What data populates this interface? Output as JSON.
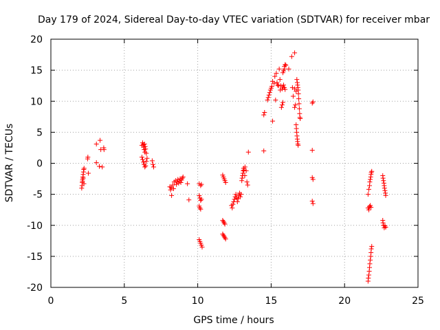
{
  "chart_data": {
    "type": "scatter",
    "title": "Day 179 of 2024, Sidereal Day-to-day VTEC variation (SDTVAR) for receiver mbar",
    "xlabel": "GPS time / hours",
    "ylabel": "SDTVAR / TECUs",
    "xlim": [
      0,
      25
    ],
    "ylim": [
      -20,
      20
    ],
    "x_ticks": [
      0,
      5,
      10,
      15,
      20,
      25
    ],
    "x_tick_labels": [
      "0",
      "5",
      "10",
      "15",
      "20",
      "25"
    ],
    "y_ticks": [
      -20,
      -15,
      -10,
      -5,
      0,
      5,
      10,
      15,
      20
    ],
    "y_tick_labels": [
      "-20",
      "-15",
      "-10",
      "-5",
      "0",
      "5",
      "10",
      "15",
      "20"
    ],
    "grid": true,
    "marker": "+",
    "marker_color": "#ff0000",
    "series": [
      {
        "name": "SDTVAR",
        "points": [
          [
            2.1,
            -4.0
          ],
          [
            2.12,
            -3.6
          ],
          [
            2.14,
            -3.1
          ],
          [
            2.16,
            -2.6
          ],
          [
            2.18,
            -2.2
          ],
          [
            2.2,
            -1.8
          ],
          [
            2.22,
            -1.4
          ],
          [
            2.24,
            -1.0
          ],
          [
            2.26,
            -0.8
          ],
          [
            2.15,
            -2.9
          ],
          [
            2.2,
            -2.4
          ],
          [
            2.25,
            -3.3
          ],
          [
            2.5,
            0.7
          ],
          [
            2.52,
            1.0
          ],
          [
            2.55,
            -1.6
          ],
          [
            3.1,
            3.1
          ],
          [
            3.1,
            0.1
          ],
          [
            3.3,
            -0.5
          ],
          [
            3.35,
            3.7
          ],
          [
            3.4,
            2.2
          ],
          [
            3.5,
            -0.6
          ],
          [
            3.6,
            2.5
          ],
          [
            3.62,
            2.2
          ],
          [
            6.2,
            2.9
          ],
          [
            6.25,
            3.3
          ],
          [
            6.3,
            3.0
          ],
          [
            6.32,
            2.6
          ],
          [
            6.35,
            2.2
          ],
          [
            6.4,
            1.8
          ],
          [
            6.38,
            3.1
          ],
          [
            6.42,
            2.7
          ],
          [
            6.45,
            2.3
          ],
          [
            6.5,
            1.6
          ],
          [
            6.2,
            1.0
          ],
          [
            6.25,
            0.6
          ],
          [
            6.3,
            0.2
          ],
          [
            6.35,
            -0.2
          ],
          [
            6.4,
            -0.6
          ],
          [
            6.45,
            -0.4
          ],
          [
            6.5,
            0.3
          ],
          [
            6.55,
            0.8
          ],
          [
            6.9,
            0.4
          ],
          [
            6.95,
            -0.2
          ],
          [
            7.0,
            -0.6
          ],
          [
            8.1,
            -3.8
          ],
          [
            8.15,
            -4.3
          ],
          [
            8.2,
            -3.9
          ],
          [
            8.22,
            -5.2
          ],
          [
            8.3,
            -3.5
          ],
          [
            8.35,
            -4.1
          ],
          [
            8.4,
            -3.0
          ],
          [
            8.5,
            -2.8
          ],
          [
            8.55,
            -3.4
          ],
          [
            8.6,
            -3.0
          ],
          [
            8.65,
            -2.6
          ],
          [
            8.7,
            -3.2
          ],
          [
            8.75,
            -2.9
          ],
          [
            8.8,
            -2.5
          ],
          [
            8.85,
            -3.1
          ],
          [
            8.9,
            -2.7
          ],
          [
            8.95,
            -2.4
          ],
          [
            9.0,
            -2.2
          ],
          [
            9.4,
            -5.9
          ],
          [
            9.3,
            -3.3
          ],
          [
            10.1,
            -3.3
          ],
          [
            10.2,
            -3.6
          ],
          [
            10.25,
            -3.4
          ],
          [
            10.1,
            -5.2
          ],
          [
            10.15,
            -5.6
          ],
          [
            10.2,
            -6.0
          ],
          [
            10.25,
            -5.8
          ],
          [
            10.1,
            -6.9
          ],
          [
            10.15,
            -7.2
          ],
          [
            10.2,
            -7.4
          ],
          [
            10.1,
            -12.3
          ],
          [
            10.15,
            -12.6
          ],
          [
            10.2,
            -12.9
          ],
          [
            10.25,
            -13.2
          ],
          [
            10.3,
            -13.5
          ],
          [
            11.7,
            -1.9
          ],
          [
            11.75,
            -2.2
          ],
          [
            11.8,
            -2.5
          ],
          [
            11.85,
            -2.8
          ],
          [
            11.9,
            -3.1
          ],
          [
            11.7,
            -9.2
          ],
          [
            11.75,
            -9.4
          ],
          [
            11.8,
            -9.6
          ],
          [
            11.85,
            -9.8
          ],
          [
            11.7,
            -11.4
          ],
          [
            11.75,
            -11.6
          ],
          [
            11.8,
            -11.8
          ],
          [
            11.85,
            -12.0
          ],
          [
            11.9,
            -12.2
          ],
          [
            12.3,
            -6.8
          ],
          [
            12.35,
            -7.2
          ],
          [
            12.4,
            -6.6
          ],
          [
            12.45,
            -6.2
          ],
          [
            12.5,
            -5.8
          ],
          [
            12.55,
            -5.4
          ],
          [
            12.6,
            -5.0
          ],
          [
            12.65,
            -5.6
          ],
          [
            12.7,
            -6.2
          ],
          [
            12.75,
            -5.7
          ],
          [
            12.8,
            -5.2
          ],
          [
            12.85,
            -4.8
          ],
          [
            12.9,
            -5.4
          ],
          [
            12.95,
            -5.0
          ],
          [
            13.0,
            -2.8
          ],
          [
            13.02,
            -2.4
          ],
          [
            13.05,
            -2.0
          ],
          [
            13.08,
            -1.6
          ],
          [
            13.1,
            -1.2
          ],
          [
            13.12,
            -0.8
          ],
          [
            13.15,
            -1.1
          ],
          [
            13.2,
            -2.0
          ],
          [
            13.22,
            -0.6
          ],
          [
            13.3,
            -1.2
          ],
          [
            13.35,
            -3.0
          ],
          [
            13.4,
            -3.5
          ],
          [
            13.45,
            1.8
          ],
          [
            14.5,
            7.8
          ],
          [
            14.55,
            8.2
          ],
          [
            14.5,
            2.0
          ],
          [
            14.75,
            10.2
          ],
          [
            14.8,
            10.6
          ],
          [
            14.85,
            11.0
          ],
          [
            14.9,
            11.4
          ],
          [
            14.95,
            11.8
          ],
          [
            15.0,
            12.1
          ],
          [
            15.05,
            12.4
          ],
          [
            15.1,
            13.2
          ],
          [
            15.1,
            6.8
          ],
          [
            15.2,
            12.9
          ],
          [
            15.25,
            14.0
          ],
          [
            15.3,
            10.2
          ],
          [
            15.35,
            14.5
          ],
          [
            15.4,
            13.0
          ],
          [
            15.45,
            12.6
          ],
          [
            15.5,
            12.5
          ],
          [
            15.55,
            15.2
          ],
          [
            15.6,
            13.5
          ],
          [
            15.62,
            11.8
          ],
          [
            15.65,
            12.5
          ],
          [
            15.7,
            9.0
          ],
          [
            15.75,
            9.4
          ],
          [
            15.8,
            9.8
          ],
          [
            15.8,
            14.6
          ],
          [
            15.85,
            14.9
          ],
          [
            15.9,
            15.2
          ],
          [
            15.9,
            15.6
          ],
          [
            15.95,
            15.9
          ],
          [
            16.0,
            15.8
          ],
          [
            15.75,
            12.0
          ],
          [
            15.8,
            12.3
          ],
          [
            15.85,
            12.6
          ],
          [
            15.9,
            12.2
          ],
          [
            15.95,
            11.9
          ],
          [
            16.2,
            15.2
          ],
          [
            16.4,
            17.2
          ],
          [
            16.6,
            17.8
          ],
          [
            16.45,
            12.2
          ],
          [
            16.5,
            10.8
          ],
          [
            16.6,
            9.0
          ],
          [
            16.65,
            9.4
          ],
          [
            16.6,
            12.0
          ],
          [
            16.7,
            11.6
          ],
          [
            16.75,
            13.5
          ],
          [
            16.78,
            13.0
          ],
          [
            16.8,
            12.6
          ],
          [
            16.82,
            12.2
          ],
          [
            16.84,
            11.8
          ],
          [
            16.86,
            11.2
          ],
          [
            16.88,
            10.4
          ],
          [
            16.9,
            9.6
          ],
          [
            16.92,
            8.8
          ],
          [
            16.94,
            8.0
          ],
          [
            16.96,
            7.4
          ],
          [
            16.98,
            7.2
          ],
          [
            16.7,
            6.2
          ],
          [
            16.72,
            5.6
          ],
          [
            16.74,
            5.0
          ],
          [
            16.76,
            4.4
          ],
          [
            16.78,
            3.9
          ],
          [
            16.8,
            3.5
          ],
          [
            16.82,
            3.1
          ],
          [
            16.84,
            2.9
          ],
          [
            17.8,
            9.7
          ],
          [
            17.85,
            9.9
          ],
          [
            17.8,
            2.1
          ],
          [
            17.8,
            -2.3
          ],
          [
            17.85,
            -2.6
          ],
          [
            17.8,
            -6.1
          ],
          [
            17.85,
            -6.5
          ],
          [
            21.6,
            -7.2
          ],
          [
            21.65,
            -7.5
          ],
          [
            21.7,
            -7.0
          ],
          [
            21.75,
            -6.8
          ],
          [
            21.8,
            -7.1
          ],
          [
            21.6,
            -5.0
          ],
          [
            21.65,
            -4.2
          ],
          [
            21.7,
            -3.6
          ],
          [
            21.72,
            -3.0
          ],
          [
            21.75,
            -2.6
          ],
          [
            21.78,
            -2.2
          ],
          [
            21.8,
            -1.8
          ],
          [
            21.82,
            -1.5
          ],
          [
            21.85,
            -1.3
          ],
          [
            21.6,
            -19.0
          ],
          [
            21.62,
            -18.5
          ],
          [
            21.65,
            -18.0
          ],
          [
            21.68,
            -17.4
          ],
          [
            21.7,
            -16.8
          ],
          [
            21.72,
            -16.2
          ],
          [
            21.75,
            -15.6
          ],
          [
            21.78,
            -15.0
          ],
          [
            21.8,
            -14.4
          ],
          [
            21.82,
            -13.8
          ],
          [
            21.85,
            -13.4
          ],
          [
            22.6,
            -2.0
          ],
          [
            22.62,
            -2.4
          ],
          [
            22.65,
            -2.8
          ],
          [
            22.68,
            -3.2
          ],
          [
            22.7,
            -3.6
          ],
          [
            22.72,
            -4.0
          ],
          [
            22.75,
            -4.4
          ],
          [
            22.78,
            -4.8
          ],
          [
            22.8,
            -5.2
          ],
          [
            22.6,
            -9.2
          ],
          [
            22.62,
            -9.6
          ],
          [
            22.65,
            -10.0
          ],
          [
            22.7,
            -10.4
          ],
          [
            22.75,
            -10.1
          ],
          [
            22.8,
            -10.3
          ]
        ]
      }
    ]
  }
}
